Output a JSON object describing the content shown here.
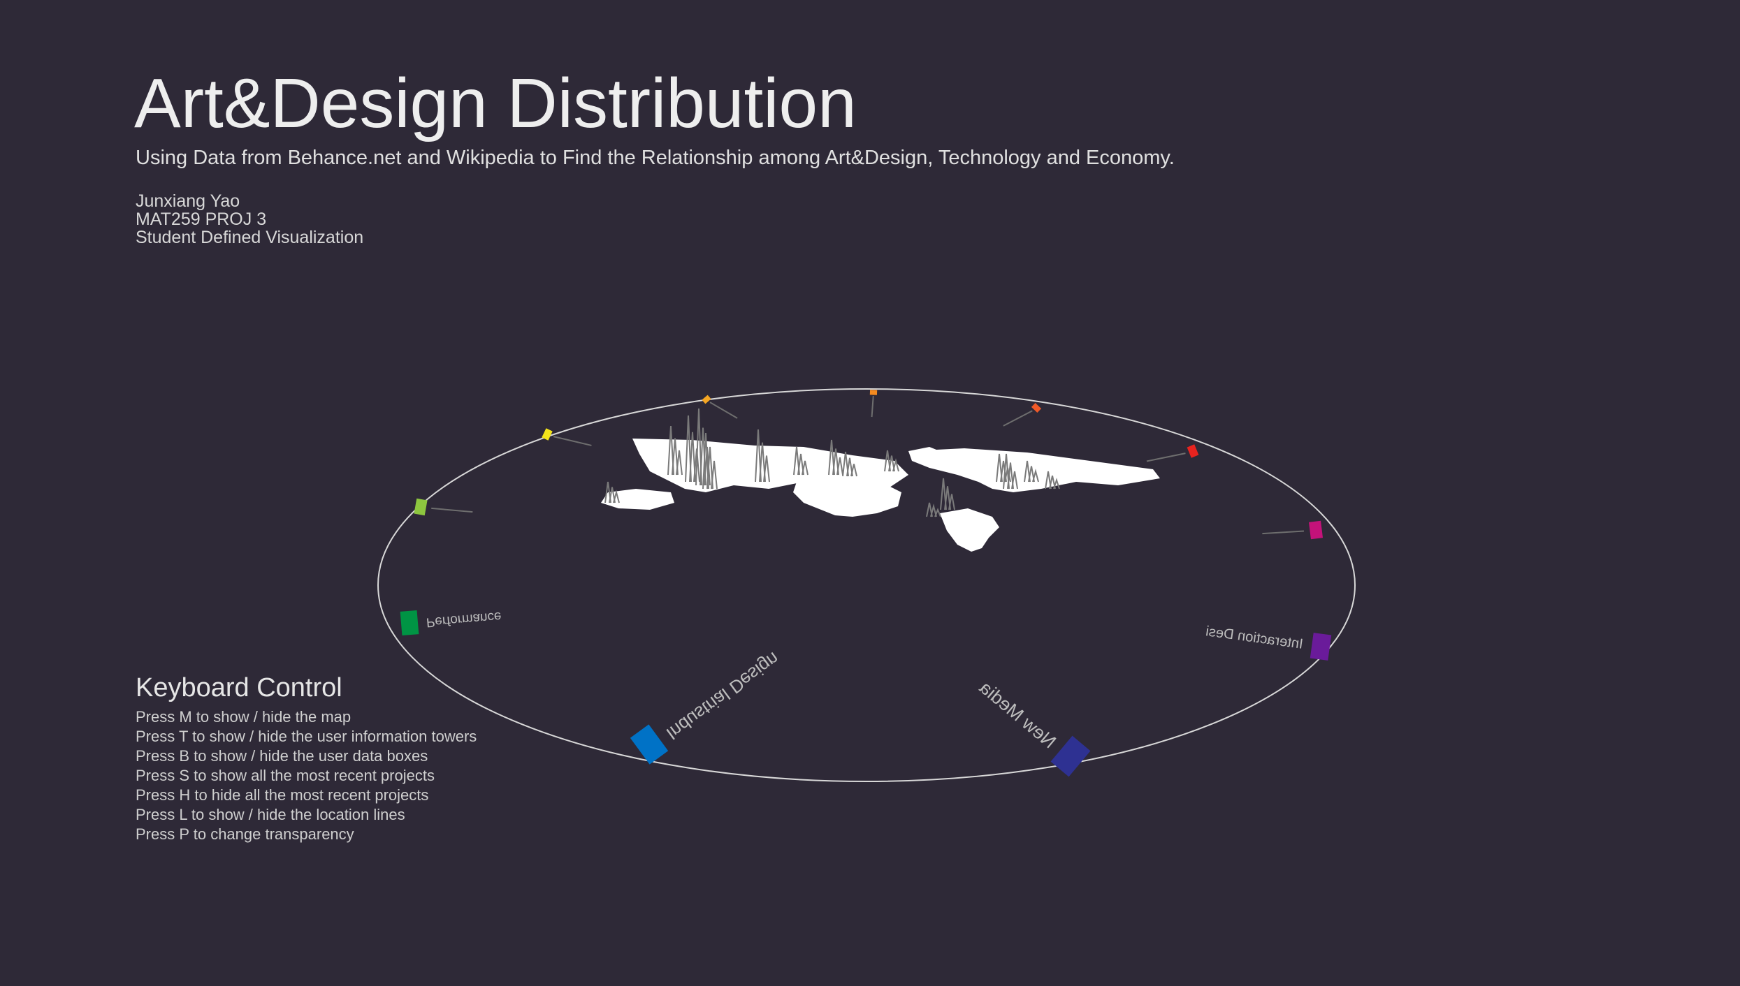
{
  "header": {
    "title": "Art&Design Distribution",
    "subtitle": "Using Data from Behance.net and Wikipedia to Find the Relationship among Art&Design, Technology and Economy.",
    "author": "Junxiang Yao",
    "course": "MAT259 PROJ 3",
    "project_type": "Student Defined Visualization"
  },
  "keyboard": {
    "heading": "Keyboard Control",
    "lines": [
      "Press M to show / hide the map",
      "Press T to show / hide the user information towers",
      "Press B to show / hide the user data boxes",
      "Press S to show all the most recent projects",
      "Press H to hide all the most recent projects",
      "Press L to show / hide the location lines",
      "Press P to change transparency"
    ]
  },
  "categories": [
    {
      "label": "",
      "color": "#f2e31a"
    },
    {
      "label": "",
      "color": "#f5a623"
    },
    {
      "label": "",
      "color": "#f58a1f"
    },
    {
      "label": "",
      "color": "#f05a28"
    },
    {
      "label": "",
      "color": "#e8231f"
    },
    {
      "label": "",
      "color": "#c4127a"
    },
    {
      "label": "Interaction Desi",
      "color": "#6a1b9a"
    },
    {
      "label": "New Media",
      "color": "#2e3192"
    },
    {
      "label": "Industrial Design",
      "color": "#0072c6"
    },
    {
      "label": "Performance",
      "color": "#009444"
    },
    {
      "label": "",
      "color": "#8dc63f"
    }
  ],
  "colors": {
    "background": "#2e2937",
    "ring": "#d8d8d8",
    "map": "#ffffff",
    "towers": "#7a7a7a"
  }
}
